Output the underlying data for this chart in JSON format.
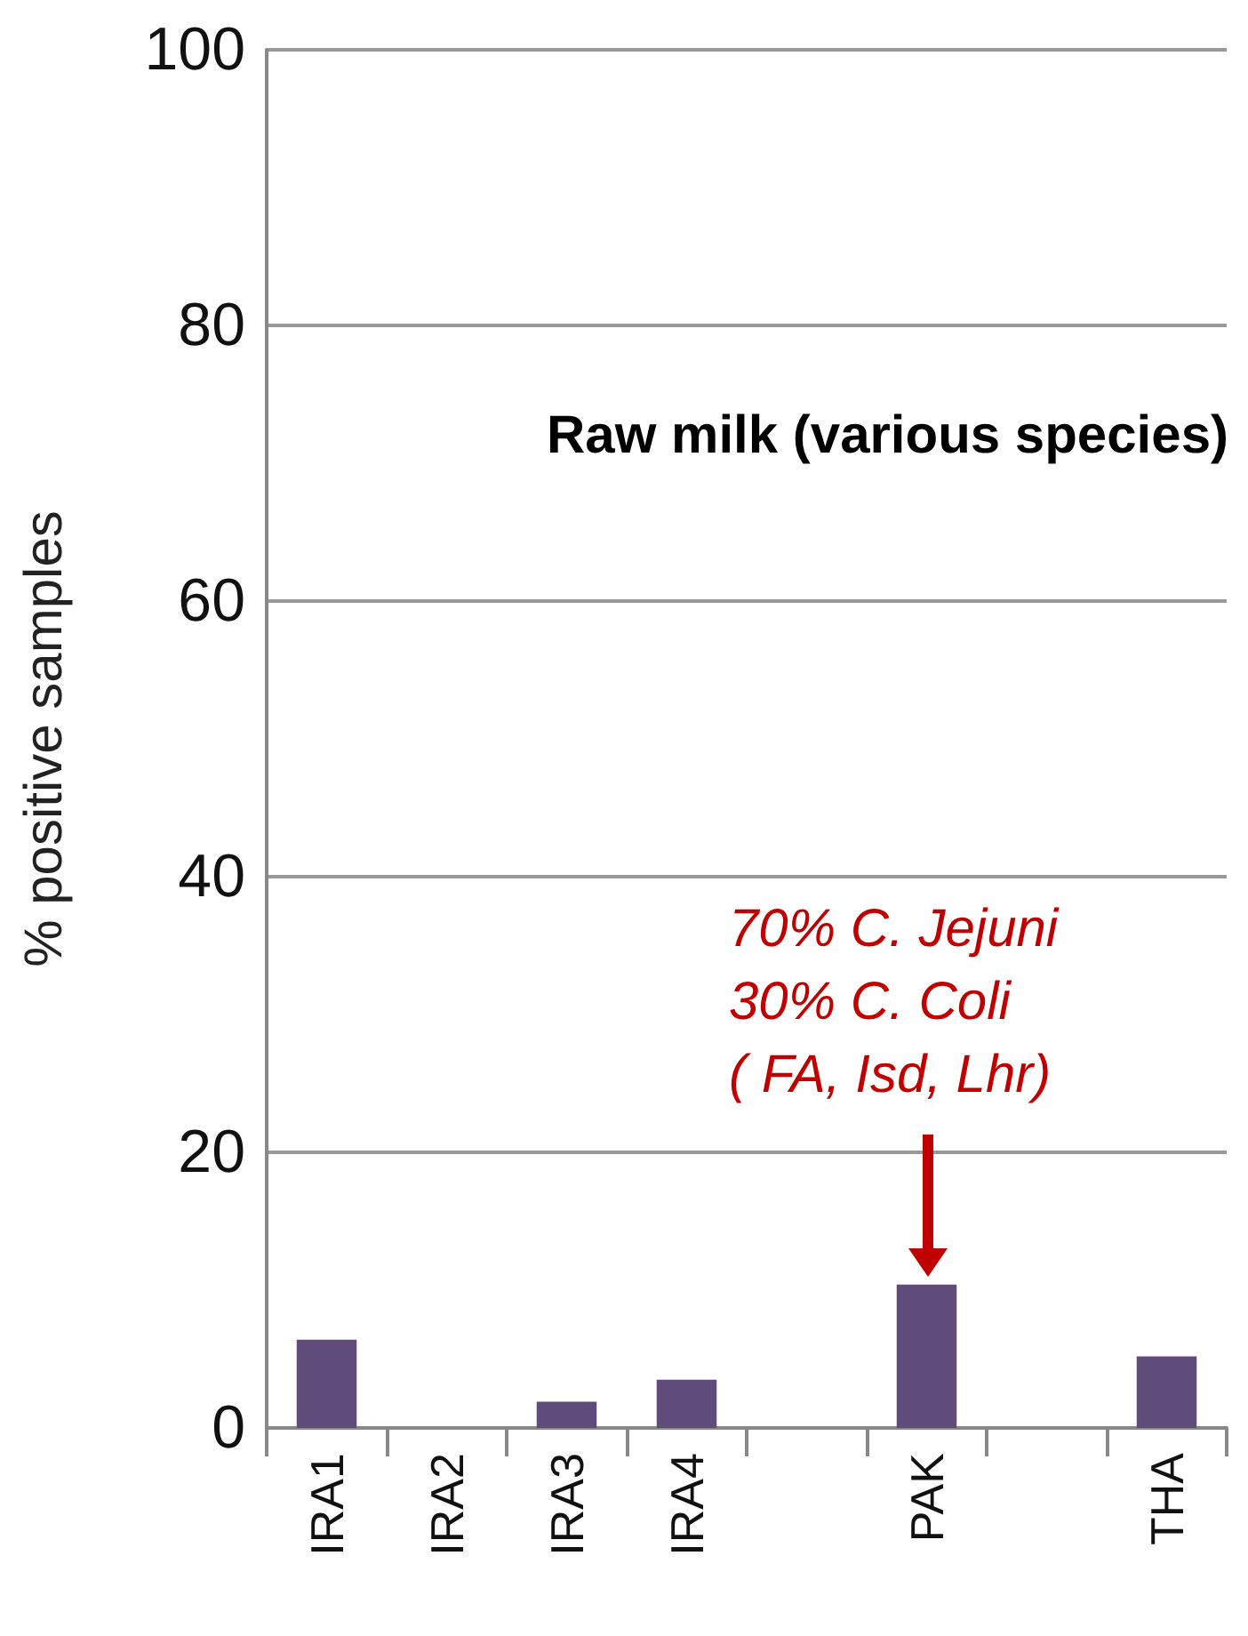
{
  "chart_data": {
    "type": "bar",
    "title": "Raw milk (various species)",
    "ylabel": "% positive samples",
    "categories": [
      "IRA1",
      "IRA2",
      "IRA3",
      "IRA4",
      null,
      "PAK",
      null,
      "THA"
    ],
    "values": [
      6.4,
      0,
      1.9,
      3.5,
      null,
      10.4,
      null,
      5.2
    ],
    "color": "#604c7a",
    "ylim": [
      0,
      100
    ],
    "yticks": [
      0,
      20,
      40,
      60,
      80,
      100
    ],
    "grid": "y",
    "annotations": [
      "70% C. Jejuni\n30% C. Coli\n( FA, Isd, Lhr)"
    ]
  }
}
